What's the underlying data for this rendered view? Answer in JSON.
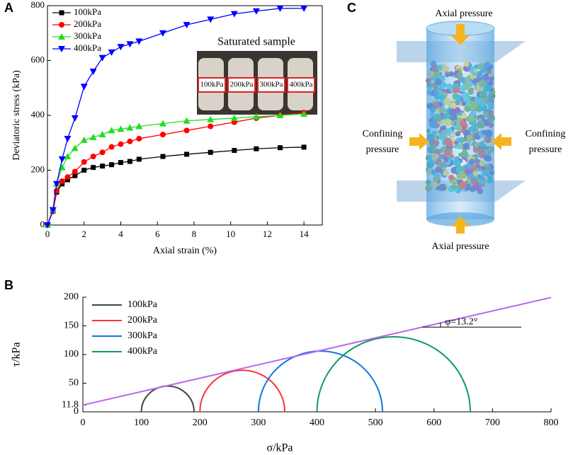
{
  "chart_data": [
    {
      "type": "line",
      "panel": "A",
      "xlabel": "Axial strain (%)",
      "ylabel": "Deviatoric stress (kPa)",
      "x": [
        0,
        0.3,
        0.5,
        0.8,
        1.1,
        1.5,
        2,
        2.5,
        3,
        3.5,
        4,
        4.5,
        5,
        6.3,
        7.6,
        8.9,
        10.2,
        11.4,
        12.7,
        14
      ],
      "series": [
        {
          "name": "100kPa",
          "color": "#000000",
          "marker": "square",
          "values": [
            0,
            50,
            120,
            150,
            165,
            180,
            200,
            210,
            215,
            220,
            228,
            232,
            240,
            250,
            258,
            265,
            272,
            278,
            282,
            284
          ]
        },
        {
          "name": "200kPa",
          "color": "#ff0000",
          "marker": "circle",
          "values": [
            0,
            50,
            125,
            160,
            175,
            195,
            230,
            250,
            265,
            285,
            295,
            305,
            315,
            330,
            345,
            360,
            375,
            390,
            400,
            410
          ]
        },
        {
          "name": "300kPa",
          "color": "#22dd22",
          "marker": "triangle-up",
          "values": [
            0,
            55,
            150,
            210,
            250,
            280,
            310,
            320,
            330,
            345,
            350,
            355,
            360,
            370,
            380,
            385,
            390,
            395,
            400,
            405
          ]
        },
        {
          "name": "400kPa",
          "color": "#0000ff",
          "marker": "triangle-down",
          "values": [
            0,
            55,
            150,
            240,
            315,
            390,
            505,
            560,
            610,
            630,
            650,
            660,
            670,
            700,
            730,
            750,
            770,
            780,
            790,
            790
          ]
        }
      ],
      "xlim": [
        0,
        15
      ],
      "xticks": [
        0,
        2,
        4,
        6,
        8,
        10,
        12,
        14
      ],
      "ylim": [
        0,
        800
      ],
      "yticks": [
        0,
        200,
        400,
        600,
        800
      ],
      "legend": "upper left",
      "inset": {
        "title": "Saturated sample",
        "labels": [
          "100kPa",
          "200kPa",
          "300kPa",
          "400kPa"
        ]
      }
    },
    {
      "type": "mohr",
      "panel": "B",
      "xlabel": "σ/kPa",
      "ylabel": "τ/kPa",
      "series": [
        {
          "name": "100kPa",
          "color": "#444444",
          "sigma3": 100,
          "sigma1": 190
        },
        {
          "name": "200kPa",
          "color": "#ff3333",
          "sigma3": 200,
          "sigma1": 345
        },
        {
          "name": "300kPa",
          "color": "#1177dd",
          "sigma3": 300,
          "sigma1": 512
        },
        {
          "name": "400kPa",
          "color": "#119966",
          "sigma3": 400,
          "sigma1": 662
        }
      ],
      "envelope": {
        "intercept": 11.8,
        "friction_angle": 13.2,
        "color": "#bb66ee"
      },
      "annotation": "φ=13.2°",
      "xlim": [
        0,
        800
      ],
      "xticks": [
        0,
        100,
        200,
        300,
        400,
        500,
        600,
        700,
        800
      ],
      "ylim": [
        0,
        200
      ],
      "yticks": [
        0,
        11.8,
        50,
        100,
        150,
        200
      ],
      "legend": "upper left"
    }
  ],
  "diagram": {
    "panel": "C",
    "top_label": "Axial pressure",
    "bottom_label": "Axial pressure",
    "left_label": [
      "Confining",
      "pressure"
    ],
    "right_label": [
      "Confining",
      "pressure"
    ]
  }
}
